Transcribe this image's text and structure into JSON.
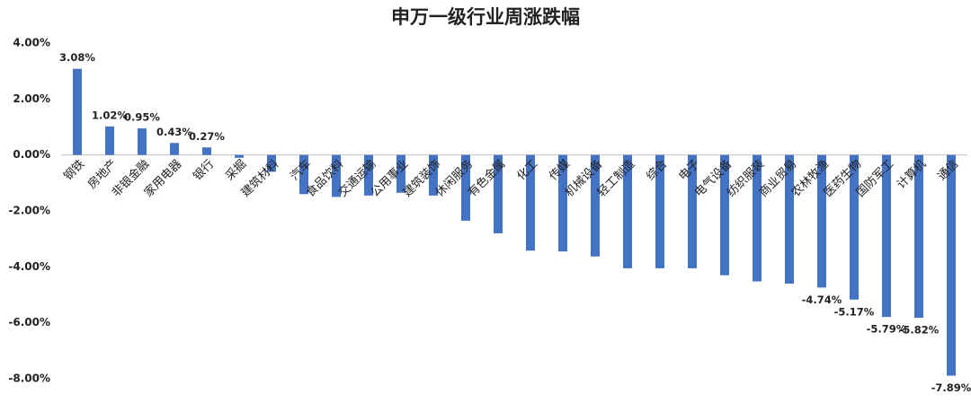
{
  "chart_data": {
    "type": "bar",
    "title": "申万一级行业周涨跌幅",
    "categories": [
      "钢铁",
      "房地产",
      "非银金融",
      "家用电器",
      "银行",
      "采掘",
      "建筑材料",
      "汽车",
      "食品饮料",
      "交通运输",
      "公用事业",
      "建筑装饰",
      "休闲服务",
      "有色金属",
      "化工",
      "传媒",
      "机械设备",
      "轻工制造",
      "综合",
      "电子",
      "电气设备",
      "纺织服装",
      "商业贸易",
      "农林牧渔",
      "医药生物",
      "国防军工",
      "计算机",
      "通信"
    ],
    "values": [
      3.08,
      1.02,
      0.95,
      0.43,
      0.27,
      -0.1,
      -0.6,
      -1.4,
      -1.5,
      -1.45,
      -1.35,
      -1.45,
      -2.35,
      -2.8,
      -3.42,
      -3.45,
      -3.63,
      -4.05,
      -4.05,
      -4.05,
      -4.3,
      -4.52,
      -4.6,
      -4.74,
      -5.17,
      -5.79,
      -5.82,
      -7.89
    ],
    "value_labels": [
      "3.08%",
      "1.02%",
      "0.95%",
      "0.43%",
      "0.27%",
      null,
      null,
      null,
      null,
      null,
      null,
      null,
      null,
      null,
      null,
      null,
      null,
      null,
      null,
      null,
      null,
      null,
      null,
      "-4.74%",
      "-5.17%",
      "-5.79%",
      "-5.82%",
      "-7.89%"
    ],
    "color": "#4472c4",
    "ylim": [
      -8,
      4
    ],
    "yticks": [
      {
        "value": 4,
        "label": "4.00%"
      },
      {
        "value": 2,
        "label": "2.00%"
      },
      {
        "value": 0,
        "label": "0.00%"
      },
      {
        "value": -2,
        "label": "-2.00%"
      },
      {
        "value": -4,
        "label": "-4.00%"
      },
      {
        "value": -6,
        "label": "-6.00%"
      },
      {
        "value": -8,
        "label": "-8.00%"
      }
    ],
    "grid": false
  }
}
